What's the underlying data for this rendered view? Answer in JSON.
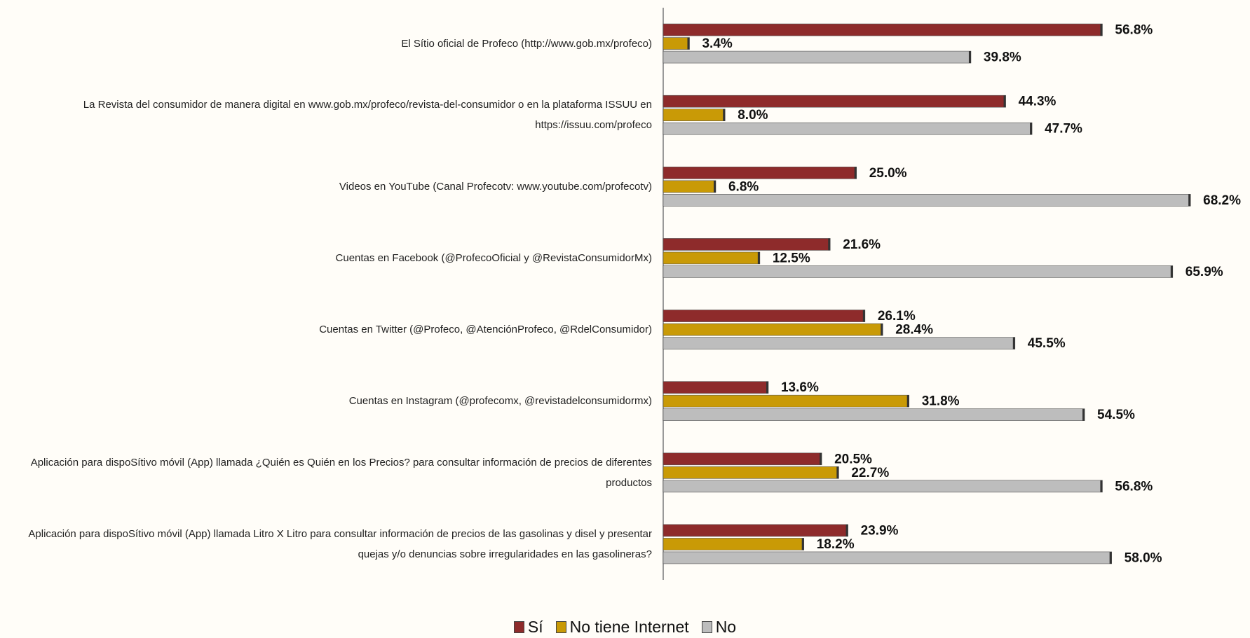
{
  "chart_data": {
    "type": "bar",
    "orientation": "horizontal",
    "categories": [
      "El Sítio oficial de Profeco (http://www.gob.mx/profeco)",
      "La Revista del consumidor de manera digital en www.gob.mx/profeco/revista-del-consumidor o en la plataforma ISSUU en https://issuu.com/profeco",
      "Videos en YouTube (Canal Profecotv: www.youtube.com/profecotv)",
      "Cuentas en Facebook (@ProfecoOficial y @RevistaConsumidorMx)",
      "Cuentas en Twitter (@Profeco, @AtenciónProfeco, @RdelConsumidor)",
      "Cuentas en Instagram (@profecomx, @revistadelconsumidormx)",
      "Aplicación para dispoSítivo móvil (App) llamada ¿Quién es Quién en los Precios? para consultar información de precios de diferentes productos",
      "Aplicación para dispoSítivo móvil (App) llamada Litro X Litro para consultar información de precios de las gasolinas y disel y presentar quejas y/o denuncias sobre irregularidades en las gasolineras?"
    ],
    "series": [
      {
        "name": "Sí",
        "color": "#8e2b2b",
        "values": [
          56.8,
          44.3,
          25.0,
          21.6,
          26.1,
          13.6,
          20.5,
          23.9
        ],
        "value_labels": [
          "56.8%",
          "44.3%",
          "25.0%",
          "21.6%",
          "26.1%",
          "13.6%",
          "20.5%",
          "23.9%"
        ]
      },
      {
        "name": "No tiene Internet",
        "color": "#c99a06",
        "values": [
          3.4,
          8.0,
          6.8,
          12.5,
          28.4,
          31.8,
          22.7,
          18.2
        ],
        "value_labels": [
          "3.4%",
          "8.0%",
          "6.8%",
          "12.5%",
          "28.4%",
          "31.8%",
          "22.7%",
          "18.2%"
        ]
      },
      {
        "name": "No",
        "color": "#bdbdbd",
        "values": [
          39.8,
          47.7,
          68.2,
          65.9,
          45.5,
          54.5,
          56.8,
          58.0
        ],
        "value_labels": [
          "39.8%",
          "47.7%",
          "68.2%",
          "65.9%",
          "45.5%",
          "54.5%",
          "56.8%",
          "58.0%"
        ]
      }
    ],
    "xlim": [
      0,
      70
    ],
    "legend": "bottom"
  }
}
